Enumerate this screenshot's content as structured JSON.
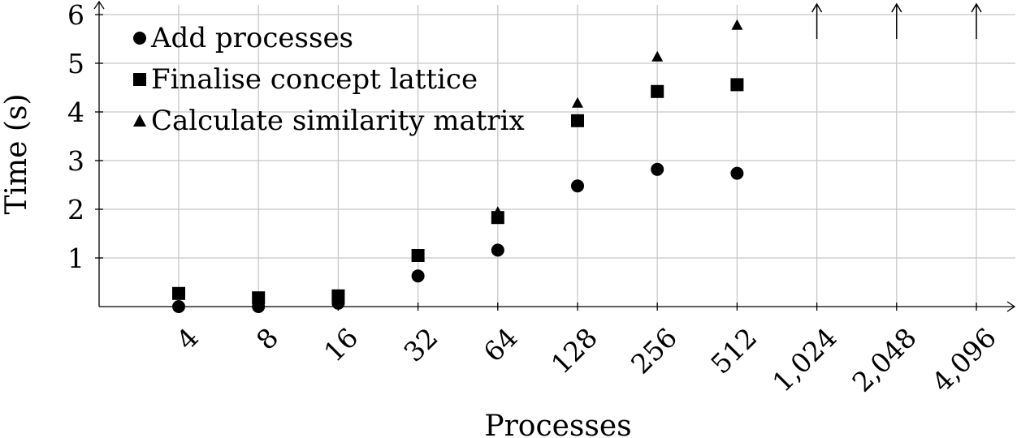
{
  "chart_data": {
    "type": "scatter",
    "xlabel": "Processes",
    "ylabel": "Time (s)",
    "ylim": [
      0,
      6
    ],
    "yticks": [
      "1",
      "2",
      "3",
      "4",
      "5",
      "6"
    ],
    "x_scale": "log2",
    "categories": [
      "4",
      "8",
      "16",
      "32",
      "64",
      "128",
      "256",
      "512",
      "1,024",
      "2,048",
      "4,096"
    ],
    "grid": true,
    "legend_position": "top-left",
    "series": [
      {
        "name": "Add processes",
        "marker": "circle",
        "values": [
          0.0,
          0.0,
          0.07,
          0.63,
          1.16,
          2.48,
          2.82,
          2.74,
          null,
          null,
          null
        ]
      },
      {
        "name": "Finalise concept lattice",
        "marker": "square",
        "values": [
          0.27,
          0.18,
          0.22,
          1.05,
          1.83,
          3.82,
          4.42,
          4.56,
          null,
          null,
          null
        ]
      },
      {
        "name": "Calculate similarity matrix",
        "marker": "triangle",
        "values": [
          0.27,
          0.18,
          0.22,
          1.05,
          1.93,
          4.17,
          5.12,
          5.77,
          null,
          null,
          null
        ]
      }
    ],
    "offscale_above": [
      "1,024",
      "2,048",
      "4,096"
    ]
  }
}
